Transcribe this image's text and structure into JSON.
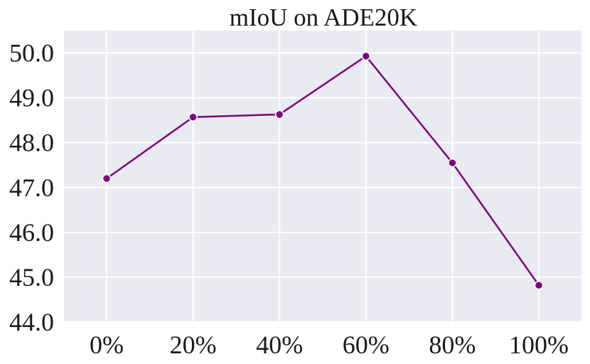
{
  "chart_data": {
    "type": "line",
    "title": "mIoU on ADE20K",
    "xlabel": "",
    "ylabel": "",
    "categories": [
      "0%",
      "20%",
      "40%",
      "60%",
      "80%",
      "100%"
    ],
    "series": [
      {
        "values": [
          47.2,
          48.57,
          48.63,
          49.93,
          47.55,
          44.82
        ]
      }
    ],
    "ylim": [
      44.0,
      50.5
    ],
    "yticks": [
      "44.0",
      "45.0",
      "46.0",
      "47.0",
      "48.0",
      "49.0",
      "50.0"
    ],
    "grid": true,
    "colors": {
      "series": "#800080",
      "background": "#eaeaf2",
      "grid": "#ffffff"
    }
  }
}
